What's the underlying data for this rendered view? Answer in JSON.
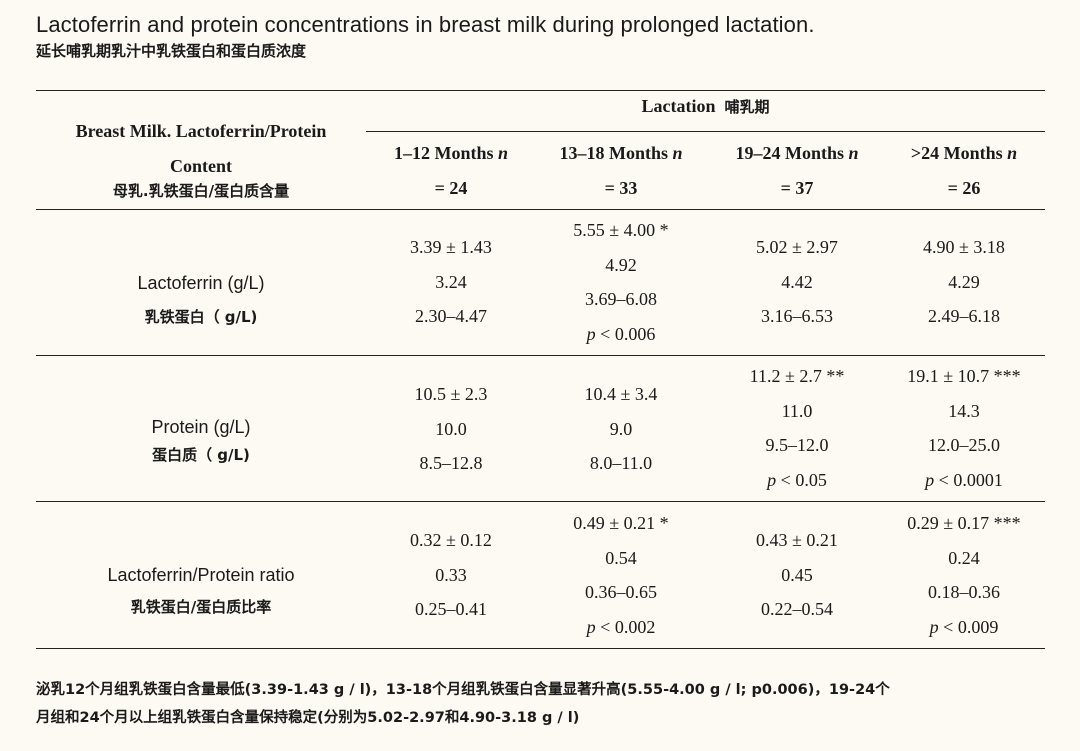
{
  "title_en": "Lactoferrin and protein concentrations in breast milk during prolonged lactation.",
  "title_zh": "延长哺乳期乳汁中乳铁蛋白和蛋白质浓度",
  "header": {
    "row_header_en_1": "Breast Milk. Lactoferrin/Protein",
    "row_header_en_2": "Content",
    "row_header_zh": "母乳.乳铁蛋白/蛋白质含量",
    "group_label_en": "Lactation",
    "group_label_zh": "哺乳期",
    "columns": [
      {
        "label": "1–12 Months",
        "n": "= 24"
      },
      {
        "label": "13–18 Months",
        "n": "= 33"
      },
      {
        "label": "19–24 Months",
        "n": "= 37"
      },
      {
        "label": ">24 Months",
        "n": "= 26"
      }
    ],
    "n_label": "n"
  },
  "rows": [
    {
      "label_en": "Lactoferrin (g/L)",
      "label_zh": "乳铁蛋白（ g/L)",
      "cells": [
        {
          "mean_sd": "3.39 ± 1.43",
          "median": "3.24",
          "range": "2.30–4.47",
          "p": ""
        },
        {
          "mean_sd": "5.55 ± 4.00 *",
          "median": "4.92",
          "range": "3.69–6.08",
          "p": "< 0.006"
        },
        {
          "mean_sd": "5.02 ± 2.97",
          "median": "4.42",
          "range": "3.16–6.53",
          "p": ""
        },
        {
          "mean_sd": "4.90 ± 3.18",
          "median": "4.29",
          "range": "2.49–6.18",
          "p": ""
        }
      ]
    },
    {
      "label_en": "Protein (g/L)",
      "label_zh": "蛋白质（ g/L)",
      "cells": [
        {
          "mean_sd": "10.5 ± 2.3",
          "median": "10.0",
          "range": "8.5–12.8",
          "p": ""
        },
        {
          "mean_sd": "10.4 ± 3.4",
          "median": "9.0",
          "range": "8.0–11.0",
          "p": ""
        },
        {
          "mean_sd": "11.2 ± 2.7 **",
          "median": "11.0",
          "range": "9.5–12.0",
          "p": "< 0.05"
        },
        {
          "mean_sd": "19.1 ± 10.7 ***",
          "median": "14.3",
          "range": "12.0–25.0",
          "p": "< 0.0001"
        }
      ]
    },
    {
      "label_en": "Lactoferrin/Protein ratio",
      "label_zh": "乳铁蛋白/蛋白质比率",
      "cells": [
        {
          "mean_sd": "0.32 ± 0.12",
          "median": "0.33",
          "range": "0.25–0.41",
          "p": ""
        },
        {
          "mean_sd": "0.49 ± 0.21 *",
          "median": "0.54",
          "range": "0.36–0.65",
          "p": "< 0.002"
        },
        {
          "mean_sd": "0.43 ± 0.21",
          "median": "0.45",
          "range": "0.22–0.54",
          "p": ""
        },
        {
          "mean_sd": "0.29 ± 0.17 ***",
          "median": "0.24",
          "range": "0.18–0.36",
          "p": "< 0.009"
        }
      ]
    }
  ],
  "p_label": "p",
  "footnote_line1": "泌乳12个月组乳铁蛋白含量最低(3.39-1.43 g / l)，13-18个月组乳铁蛋白含量显著升高(5.55-4.00 g / l; p0.006)，19-24个",
  "footnote_line2": "月组和24个月以上组乳铁蛋白含量保持稳定(分别为5.02-2.97和4.90-3.18 g / l)"
}
